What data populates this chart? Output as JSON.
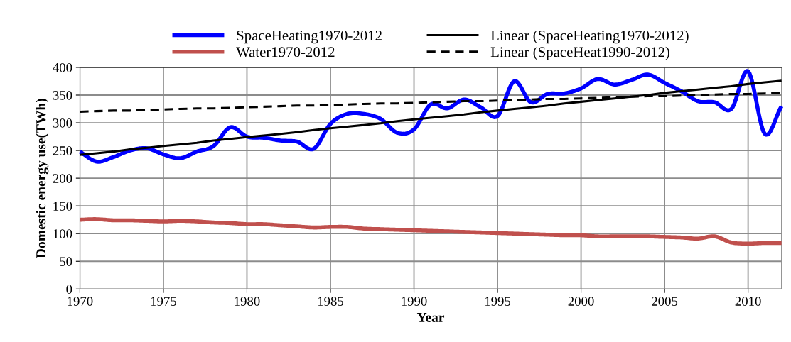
{
  "chart_data": {
    "type": "line",
    "xlabel": "Year",
    "ylabel": "Domestic energy use(TWh)",
    "xlim": [
      1970,
      2012
    ],
    "xticks": [
      1970,
      1975,
      1980,
      1985,
      1990,
      1995,
      2000,
      2005,
      2010
    ],
    "ylim": [
      0,
      400
    ],
    "yticks": [
      0,
      50,
      100,
      150,
      200,
      250,
      300,
      350,
      400
    ],
    "grid": true,
    "legend": "top",
    "marker": "none",
    "x": [
      1970,
      1971,
      1972,
      1973,
      1974,
      1975,
      1976,
      1977,
      1978,
      1979,
      1980,
      1981,
      1982,
      1983,
      1984,
      1985,
      1986,
      1987,
      1988,
      1989,
      1990,
      1991,
      1992,
      1993,
      1994,
      1995,
      1996,
      1997,
      1998,
      1999,
      2000,
      2001,
      2002,
      2003,
      2004,
      2005,
      2006,
      2007,
      2008,
      2009,
      2010,
      2011,
      2012
    ],
    "series": [
      {
        "name": "SpaceHeating1970-2012",
        "color": "#0000ff",
        "line_style": "solid",
        "values": [
          248,
          230,
          238,
          250,
          254,
          243,
          236,
          248,
          258,
          292,
          275,
          273,
          268,
          266,
          253,
          298,
          316,
          316,
          307,
          282,
          288,
          333,
          326,
          342,
          328,
          312,
          375,
          337,
          352,
          353,
          362,
          379,
          369,
          377,
          387,
          372,
          357,
          339,
          337,
          325,
          393,
          280,
          330
        ]
      },
      {
        "name": "Water1970-2012",
        "color": "#c0504d",
        "line_style": "solid",
        "values": [
          125,
          126,
          124,
          124,
          123,
          122,
          123,
          122,
          120,
          119,
          117,
          117,
          115,
          113,
          111,
          112,
          112,
          109,
          108,
          107,
          106,
          105,
          104,
          103,
          102,
          101,
          100,
          99,
          98,
          97,
          97,
          95,
          95,
          95,
          95,
          94,
          93,
          91,
          95,
          84,
          82,
          83,
          83
        ]
      },
      {
        "name": "Linear (SpaceHeating1970-2012)",
        "color": "#000000",
        "line_style": "solid",
        "values": [
          242,
          245,
          248,
          252,
          255,
          258,
          261,
          264,
          268,
          271,
          274,
          277,
          280,
          283,
          287,
          290,
          293,
          296,
          299,
          303,
          306,
          309,
          312,
          315,
          319,
          322,
          325,
          328,
          331,
          335,
          338,
          341,
          344,
          347,
          350,
          354,
          357,
          360,
          363,
          366,
          370,
          373,
          376
        ]
      },
      {
        "name": "Linear (SpaceHeat1990-2012)",
        "color": "#000000",
        "line_style": "dashed",
        "values": [
          320,
          321,
          322,
          322,
          323,
          324,
          325,
          326,
          326,
          327,
          328,
          329,
          330,
          331,
          331,
          332,
          333,
          334,
          335,
          335,
          336,
          337,
          338,
          339,
          339,
          340,
          341,
          342,
          343,
          343,
          344,
          345,
          346,
          347,
          348,
          348,
          349,
          350,
          351,
          352,
          352,
          353,
          354
        ]
      }
    ]
  }
}
